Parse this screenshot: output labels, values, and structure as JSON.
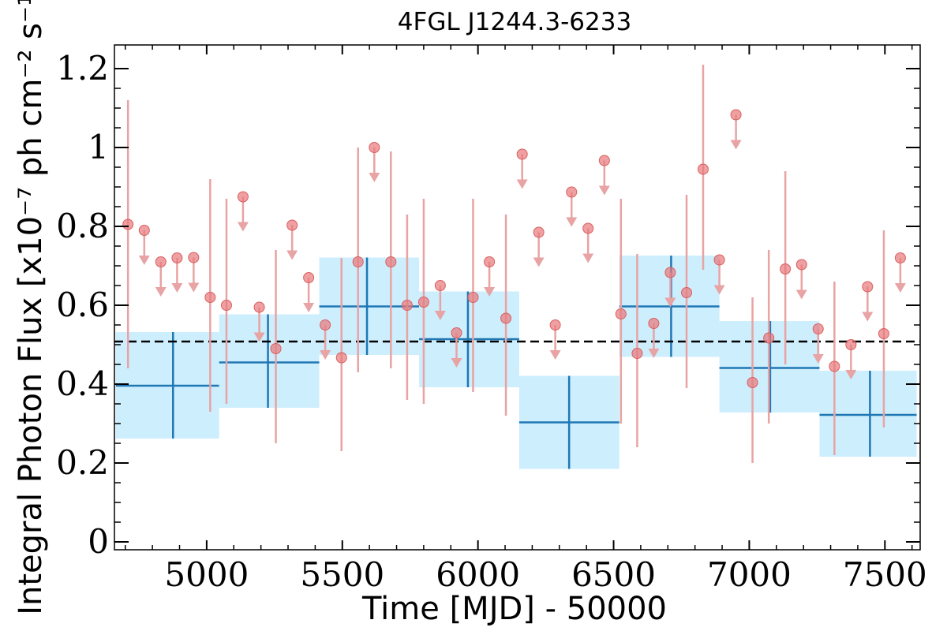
{
  "chart_data": {
    "type": "scatter",
    "title": "4FGL J1244.3-6233",
    "xlabel": "Time [MJD] - 50000",
    "ylabel": "Integral Photon Flux [x10⁻⁷ ph cm⁻² s⁻¹]",
    "xlim": [
      4660,
      7630
    ],
    "ylim": [
      -0.02,
      1.26
    ],
    "x_ticks": [
      5000,
      5500,
      6000,
      6500,
      7000,
      7500
    ],
    "x_tick_labels": [
      "5000",
      "5500",
      "6000",
      "6500",
      "7000",
      "7500"
    ],
    "y_ticks": [
      0,
      0.2,
      0.4,
      0.6,
      0.8,
      1.0,
      1.2
    ],
    "y_tick_labels": [
      "0",
      "0.2",
      "0.4",
      "0.6",
      "0.8",
      "1",
      "1.2"
    ],
    "grid": false,
    "reference_line": {
      "y": 0.508,
      "style": "dashed"
    },
    "series": [
      {
        "type": "binned",
        "bins": [
          {
            "x0": 4665,
            "x1": 5046,
            "x": 4876,
            "y": 0.396,
            "ylow": 0.262,
            "yhigh": 0.532
          },
          {
            "x0": 5046,
            "x1": 5415,
            "x": 5226,
            "y": 0.455,
            "ylow": 0.34,
            "yhigh": 0.577
          },
          {
            "x0": 5415,
            "x1": 5783,
            "x": 5591,
            "y": 0.597,
            "ylow": 0.474,
            "yhigh": 0.721
          },
          {
            "x0": 5783,
            "x1": 6152,
            "x": 5963,
            "y": 0.514,
            "ylow": 0.392,
            "yhigh": 0.635
          },
          {
            "x0": 6152,
            "x1": 6521,
            "x": 6336,
            "y": 0.303,
            "ylow": 0.185,
            "yhigh": 0.421
          },
          {
            "x0": 6521,
            "x1": 6890,
            "x": 6712,
            "y": 0.597,
            "ylow": 0.469,
            "yhigh": 0.726
          },
          {
            "x0": 6890,
            "x1": 7259,
            "x": 7077,
            "y": 0.441,
            "ylow": 0.328,
            "yhigh": 0.56
          },
          {
            "x0": 7259,
            "x1": 7617,
            "x": 7445,
            "y": 0.322,
            "ylow": 0.216,
            "yhigh": 0.434
          }
        ]
      },
      {
        "type": "points",
        "points": [
          {
            "x": 4710,
            "y": 0.805,
            "ylow": 0.44,
            "yhigh": 1.12
          },
          {
            "x": 4770,
            "y": 0.79,
            "ul": true
          },
          {
            "x": 4831,
            "y": 0.71,
            "ul": true
          },
          {
            "x": 4891,
            "y": 0.72,
            "ul": true
          },
          {
            "x": 4952,
            "y": 0.721,
            "ul": true
          },
          {
            "x": 5013,
            "y": 0.62,
            "ylow": 0.33,
            "yhigh": 0.92
          },
          {
            "x": 5073,
            "y": 0.6,
            "ylow": 0.35,
            "yhigh": 0.87
          },
          {
            "x": 5134,
            "y": 0.875,
            "ul": true
          },
          {
            "x": 5194,
            "y": 0.595,
            "ul": true
          },
          {
            "x": 5255,
            "y": 0.49,
            "ylow": 0.25,
            "yhigh": 0.74
          },
          {
            "x": 5315,
            "y": 0.803,
            "ul": true
          },
          {
            "x": 5376,
            "y": 0.67,
            "ul": true
          },
          {
            "x": 5437,
            "y": 0.55,
            "ul": true
          },
          {
            "x": 5497,
            "y": 0.467,
            "ylow": 0.23,
            "yhigh": 0.72
          },
          {
            "x": 5558,
            "y": 0.71,
            "ylow": 0.43,
            "yhigh": 1.0
          },
          {
            "x": 5618,
            "y": 1.0,
            "ul": true
          },
          {
            "x": 5679,
            "y": 0.71,
            "ylow": 0.44,
            "yhigh": 0.99
          },
          {
            "x": 5739,
            "y": 0.6,
            "ylow": 0.36,
            "yhigh": 0.83
          },
          {
            "x": 5800,
            "y": 0.608,
            "ylow": 0.35,
            "yhigh": 0.87
          },
          {
            "x": 5861,
            "y": 0.65,
            "ul": true
          },
          {
            "x": 5921,
            "y": 0.53,
            "ul": true
          },
          {
            "x": 5982,
            "y": 0.62,
            "ylow": 0.38,
            "yhigh": 0.87
          },
          {
            "x": 6042,
            "y": 0.71,
            "ul": true
          },
          {
            "x": 6103,
            "y": 0.567,
            "ylow": 0.32,
            "yhigh": 0.83
          },
          {
            "x": 6163,
            "y": 0.983,
            "ul": true
          },
          {
            "x": 6224,
            "y": 0.785,
            "ul": true
          },
          {
            "x": 6285,
            "y": 0.55,
            "ul": true
          },
          {
            "x": 6345,
            "y": 0.887,
            "ul": true
          },
          {
            "x": 6406,
            "y": 0.795,
            "ul": true
          },
          {
            "x": 6466,
            "y": 0.967,
            "ul": true
          },
          {
            "x": 6527,
            "y": 0.578,
            "ylow": 0.3,
            "yhigh": 0.87
          },
          {
            "x": 6587,
            "y": 0.478,
            "ylow": 0.24,
            "yhigh": 0.73
          },
          {
            "x": 6648,
            "y": 0.554,
            "ul": true
          },
          {
            "x": 6709,
            "y": 0.683,
            "ul": true
          },
          {
            "x": 6769,
            "y": 0.632,
            "ylow": 0.39,
            "yhigh": 0.88
          },
          {
            "x": 6830,
            "y": 0.945,
            "ylow": 0.69,
            "yhigh": 1.21
          },
          {
            "x": 6890,
            "y": 0.715,
            "ul": true
          },
          {
            "x": 6951,
            "y": 1.083,
            "ul": true
          },
          {
            "x": 7012,
            "y": 0.404,
            "ylow": 0.2,
            "yhigh": 0.62
          },
          {
            "x": 7072,
            "y": 0.517,
            "ylow": 0.3,
            "yhigh": 0.74
          },
          {
            "x": 7133,
            "y": 0.692,
            "ylow": 0.45,
            "yhigh": 0.94
          },
          {
            "x": 7193,
            "y": 0.703,
            "ul": true
          },
          {
            "x": 7254,
            "y": 0.54,
            "ul": true
          },
          {
            "x": 7314,
            "y": 0.445,
            "ylow": 0.22,
            "yhigh": 0.66
          },
          {
            "x": 7375,
            "y": 0.5,
            "ul": true
          },
          {
            "x": 7436,
            "y": 0.647,
            "ul": true
          },
          {
            "x": 7496,
            "y": 0.528,
            "ylow": 0.29,
            "yhigh": 0.79
          },
          {
            "x": 7557,
            "y": 0.72,
            "ul": true
          }
        ]
      }
    ],
    "colors": {
      "bin_fill": "#cdeefd",
      "bin_line": "#1f77b4",
      "point": "#e8777a",
      "errorbar": "#e8a3a4",
      "reference_line": "#000000"
    }
  }
}
